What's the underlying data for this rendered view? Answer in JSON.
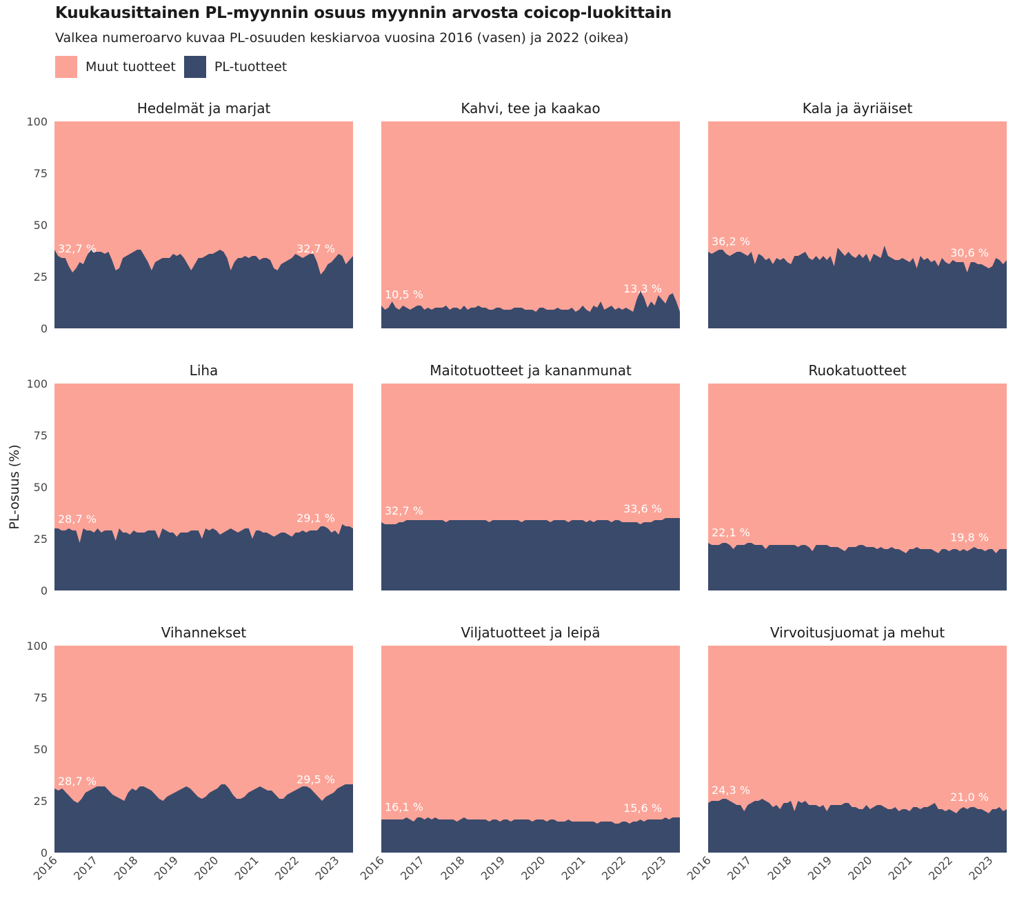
{
  "title": "Kuukausittainen PL-myynnin osuus myynnin arvosta coicop-luokittain",
  "subtitle": "Valkea numeroarvo kuvaa PL-osuuden keskiarvoa vuosina 2016 (vasen) ja 2022 (oikea)",
  "colors": {
    "other": "#fca397",
    "pl": "#3a4a6b",
    "annotation": "#ffffff"
  },
  "legend": [
    {
      "label": "Muut tuotteet",
      "color": "#fca397"
    },
    {
      "label": "PL-tuotteet",
      "color": "#3a4a6b"
    }
  ],
  "chart_data": {
    "type": "area",
    "stacked": true,
    "ylabel": "PL-osuus (%)",
    "xlabel": "",
    "ylim": [
      0,
      100
    ],
    "yticks": [
      "0",
      "25",
      "50",
      "75",
      "100"
    ],
    "xticks": [
      "2016",
      "2017",
      "2018",
      "2019",
      "2020",
      "2021",
      "2022",
      "2023"
    ],
    "x_range": [
      "2016-01",
      "2023-06"
    ],
    "grid": false,
    "legend_position": "top-left",
    "series_names": [
      "Muut tuotteet",
      "PL-tuotteet"
    ],
    "panels": [
      {
        "name": "Hedelmät ja marjat",
        "label_2016": "32,7 %",
        "label_2022": "32,7 %",
        "pl_values": [
          38,
          35,
          34,
          34,
          30,
          27,
          29,
          32,
          31,
          35,
          38,
          37,
          37,
          37,
          36,
          37,
          33,
          28,
          29,
          34,
          35,
          36,
          37,
          38,
          38,
          35,
          32,
          28,
          32,
          33,
          34,
          34,
          34,
          36,
          35,
          36,
          34,
          31,
          28,
          31,
          34,
          34,
          35,
          36,
          36,
          37,
          38,
          37,
          34,
          28,
          32,
          34,
          34,
          35,
          34,
          35,
          35,
          33,
          34,
          34,
          33,
          29,
          28,
          31,
          32,
          33,
          34,
          36,
          35,
          34,
          35,
          36,
          36,
          32,
          26,
          28,
          31,
          32,
          34,
          36,
          35,
          31,
          33,
          35
        ]
      },
      {
        "name": "Kahvi, tee ja kaakao",
        "label_2016": "10,5 %",
        "label_2022": "13,3 %",
        "pl_values": [
          11,
          9,
          10,
          13,
          10,
          9,
          11,
          10,
          9,
          10,
          11,
          11,
          9,
          10,
          9,
          10,
          10,
          10,
          11,
          9,
          10,
          10,
          9,
          11,
          9,
          10,
          10,
          11,
          10,
          10,
          9,
          9,
          10,
          10,
          9,
          9,
          9,
          10,
          10,
          10,
          9,
          9,
          9,
          8,
          10,
          10,
          9,
          9,
          9,
          10,
          9,
          9,
          9,
          10,
          8,
          9,
          11,
          9,
          8,
          11,
          10,
          13,
          9,
          10,
          11,
          9,
          10,
          9,
          10,
          9,
          8,
          14,
          18,
          15,
          10,
          13,
          11,
          16,
          14,
          12,
          16,
          17,
          13,
          8
        ]
      },
      {
        "name": "Kala ja äyriäiset",
        "label_2016": "36,2 %",
        "label_2022": "30,6 %",
        "pl_values": [
          37,
          36,
          37,
          38,
          38,
          36,
          35,
          36,
          37,
          37,
          36,
          35,
          37,
          31,
          36,
          35,
          33,
          34,
          31,
          34,
          33,
          34,
          32,
          31,
          35,
          35,
          36,
          37,
          34,
          33,
          35,
          33,
          35,
          33,
          35,
          30,
          39,
          37,
          35,
          37,
          35,
          34,
          36,
          34,
          36,
          32,
          36,
          35,
          34,
          40,
          35,
          34,
          33,
          33,
          34,
          33,
          32,
          34,
          29,
          35,
          33,
          34,
          32,
          33,
          30,
          34,
          32,
          31,
          33,
          32,
          32,
          32,
          27,
          32,
          32,
          31,
          31,
          30,
          29,
          30,
          34,
          33,
          31,
          33
        ]
      },
      {
        "name": "Liha",
        "label_2016": "28,7 %",
        "label_2022": "29,1 %",
        "pl_values": [
          30,
          30,
          29,
          29,
          30,
          29,
          29,
          23,
          30,
          29,
          29,
          28,
          30,
          28,
          29,
          29,
          29,
          24,
          30,
          28,
          28,
          27,
          29,
          28,
          28,
          28,
          29,
          29,
          29,
          25,
          30,
          29,
          28,
          28,
          26,
          28,
          28,
          28,
          29,
          29,
          29,
          25,
          30,
          29,
          30,
          29,
          27,
          28,
          29,
          30,
          29,
          28,
          29,
          30,
          30,
          25,
          29,
          29,
          28,
          28,
          27,
          26,
          27,
          28,
          28,
          27,
          26,
          28,
          28,
          29,
          28,
          29,
          29,
          29,
          31,
          31,
          30,
          28,
          29,
          27,
          32,
          31,
          31,
          30
        ]
      },
      {
        "name": "Maitotuotteet ja kananmunat",
        "label_2016": "32,7 %",
        "label_2022": "33,6 %",
        "pl_values": [
          33,
          32,
          32,
          32,
          32,
          33,
          33,
          34,
          34,
          34,
          34,
          34,
          34,
          34,
          34,
          34,
          34,
          34,
          33,
          34,
          34,
          34,
          34,
          34,
          34,
          34,
          34,
          34,
          34,
          34,
          33,
          34,
          34,
          34,
          34,
          34,
          34,
          34,
          34,
          33,
          34,
          34,
          34,
          34,
          34,
          34,
          34,
          33,
          34,
          34,
          34,
          34,
          33,
          34,
          34,
          34,
          34,
          33,
          34,
          33,
          34,
          34,
          34,
          34,
          33,
          34,
          34,
          33,
          33,
          33,
          33,
          33,
          32,
          33,
          33,
          33,
          34,
          34,
          34,
          35,
          35,
          35,
          35,
          35
        ]
      },
      {
        "name": "Ruokatuotteet",
        "label_2016": "22,1 %",
        "label_2022": "19,8 %",
        "pl_values": [
          23,
          22,
          22,
          22,
          23,
          23,
          22,
          20,
          22,
          22,
          22,
          23,
          23,
          22,
          22,
          22,
          20,
          22,
          22,
          22,
          22,
          22,
          22,
          22,
          22,
          21,
          22,
          22,
          21,
          19,
          22,
          22,
          22,
          22,
          21,
          21,
          21,
          20,
          19,
          21,
          21,
          21,
          22,
          22,
          21,
          21,
          21,
          20,
          21,
          20,
          20,
          21,
          20,
          20,
          19,
          18,
          20,
          20,
          21,
          20,
          20,
          20,
          20,
          19,
          18,
          20,
          20,
          19,
          20,
          20,
          19,
          20,
          19,
          20,
          21,
          20,
          20,
          19,
          20,
          20,
          18,
          20,
          20,
          20
        ]
      },
      {
        "name": "Vihannekset",
        "label_2016": "28,7 %",
        "label_2022": "29,5 %",
        "pl_values": [
          31,
          30,
          31,
          29,
          27,
          25,
          24,
          26,
          29,
          30,
          31,
          32,
          32,
          32,
          30,
          28,
          27,
          26,
          25,
          29,
          31,
          30,
          32,
          32,
          31,
          30,
          28,
          26,
          25,
          27,
          28,
          29,
          30,
          31,
          32,
          31,
          29,
          27,
          26,
          27,
          29,
          30,
          31,
          33,
          33,
          31,
          28,
          26,
          26,
          27,
          29,
          30,
          31,
          32,
          31,
          30,
          30,
          28,
          26,
          26,
          28,
          29,
          30,
          31,
          32,
          32,
          31,
          29,
          27,
          25,
          27,
          28,
          29,
          31,
          32,
          33,
          33,
          33
        ]
      },
      {
        "name": "Viljatuotteet ja leipä",
        "label_2016": "16,1 %",
        "label_2022": "15,6 %",
        "pl_values": [
          16,
          16,
          16,
          16,
          16,
          16,
          16,
          17,
          16,
          15,
          17,
          17,
          16,
          17,
          16,
          17,
          16,
          16,
          16,
          16,
          16,
          15,
          16,
          17,
          16,
          16,
          16,
          16,
          16,
          16,
          15,
          16,
          16,
          15,
          16,
          16,
          15,
          16,
          16,
          16,
          16,
          16,
          15,
          16,
          16,
          16,
          15,
          16,
          16,
          15,
          15,
          15,
          16,
          15,
          15,
          15,
          15,
          15,
          15,
          15,
          14,
          15,
          15,
          15,
          15,
          14,
          14,
          15,
          15,
          14,
          15,
          15,
          16,
          15,
          16,
          16,
          16,
          16,
          16,
          17,
          16,
          17,
          17,
          17
        ]
      },
      {
        "name": "Virvoitusjuomat ja mehut",
        "label_2016": "24,3 %",
        "label_2022": "21,0 %",
        "pl_values": [
          24,
          25,
          25,
          25,
          26,
          26,
          25,
          24,
          23,
          23,
          20,
          23,
          24,
          25,
          25,
          26,
          25,
          24,
          22,
          23,
          21,
          24,
          24,
          25,
          20,
          25,
          24,
          25,
          23,
          23,
          23,
          22,
          23,
          20,
          23,
          23,
          23,
          23,
          24,
          24,
          22,
          22,
          21,
          21,
          23,
          21,
          22,
          23,
          23,
          22,
          21,
          21,
          22,
          20,
          21,
          21,
          20,
          22,
          22,
          21,
          22,
          22,
          23,
          24,
          21,
          21,
          20,
          21,
          20,
          19,
          21,
          22,
          21,
          22,
          22,
          21,
          21,
          20,
          19,
          21,
          21,
          22,
          20,
          21
        ]
      }
    ]
  }
}
